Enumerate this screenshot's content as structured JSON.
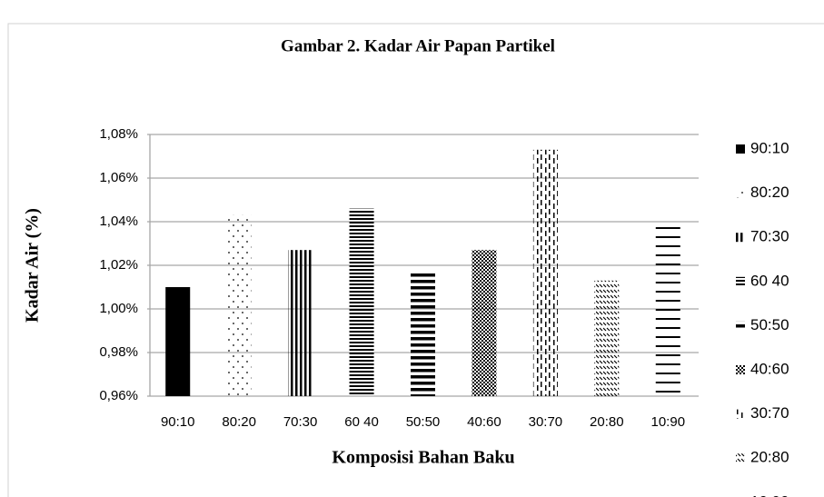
{
  "chart_data": {
    "type": "bar",
    "title": "Gambar 2. Kadar Air Papan Partikel",
    "x_label": "Komposisi Bahan Baku",
    "y_label": "Kadar Air (%)",
    "categories": [
      "90:10",
      "80:20",
      "70:30",
      "60 40",
      "50:50",
      "40:60",
      "30:70",
      "20:80",
      "10:90"
    ],
    "values": [
      1.01,
      1.043,
      1.027,
      1.046,
      1.017,
      1.027,
      1.073,
      1.013,
      1.04
    ],
    "color": "#000000",
    "ylim": [
      0.96,
      1.08
    ],
    "yticks": [
      {
        "value": 0.96,
        "label": "0,96%"
      },
      {
        "value": 0.98,
        "label": "0,98%"
      },
      {
        "value": 1.0,
        "label": "1,00%"
      },
      {
        "value": 1.02,
        "label": "1,02%"
      },
      {
        "value": 1.04,
        "label": "1,04%"
      },
      {
        "value": 1.06,
        "label": "1,06%"
      },
      {
        "value": 1.08,
        "label": "1,08%"
      }
    ],
    "grid": true,
    "legend": "right"
  }
}
